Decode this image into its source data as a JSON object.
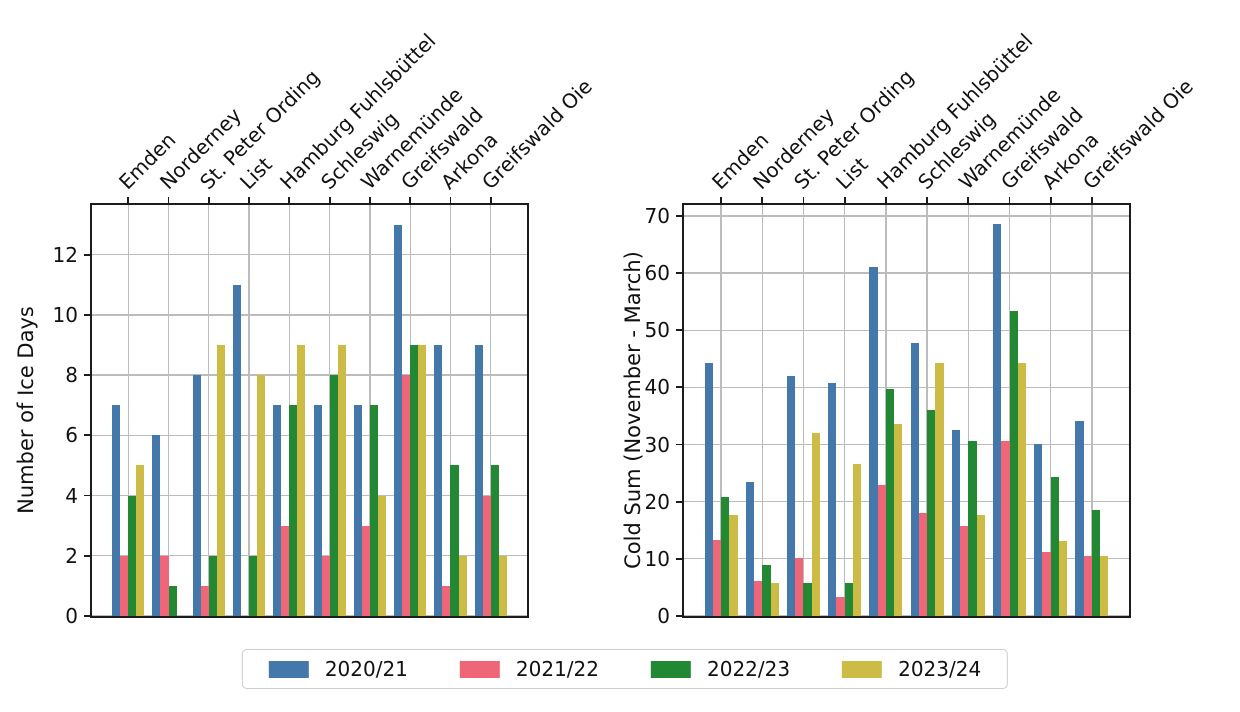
{
  "figure": {
    "background": "#ffffff"
  },
  "palette": {
    "season_2020_21": "#4477AA",
    "season_2021_22": "#EE6677",
    "season_2022_23": "#228833",
    "season_2023_24": "#CCBB44"
  },
  "axis_color": "#1c1c1c",
  "grid_color": "#bcbcbc",
  "legend": {
    "items": [
      {
        "label": "2020/21",
        "color": "#4477AA"
      },
      {
        "label": "2021/22",
        "color": "#EE6677"
      },
      {
        "label": "2022/23",
        "color": "#228833"
      },
      {
        "label": "2023/24",
        "color": "#CCBB44"
      }
    ]
  },
  "chart_data": [
    {
      "type": "bar",
      "title": "",
      "xlabel": "",
      "ylabel": "Number of Ice Days",
      "grid": true,
      "legend_position": "bottom-center-outside",
      "categories": [
        "Emden",
        "Norderney",
        "St. Peter Ording",
        "List",
        "Hamburg Fuhlsbüttel",
        "Schleswig",
        "Warnemünde",
        "Greifswald",
        "Arkona",
        "Greifswald Oie"
      ],
      "series": [
        {
          "name": "2020/21",
          "color": "#4477AA",
          "values": [
            7,
            6,
            8,
            11,
            7,
            7,
            7,
            13,
            9,
            9
          ]
        },
        {
          "name": "2021/22",
          "color": "#EE6677",
          "values": [
            2,
            2,
            1,
            0,
            3,
            2,
            3,
            8,
            1,
            4
          ]
        },
        {
          "name": "2022/23",
          "color": "#228833",
          "values": [
            4,
            1,
            2,
            2,
            7,
            8,
            7,
            9,
            5,
            5
          ]
        },
        {
          "name": "2023/24",
          "color": "#CCBB44",
          "values": [
            5,
            0,
            9,
            8,
            9,
            9,
            4,
            9,
            2,
            2
          ]
        }
      ],
      "yticks": [
        0,
        2,
        4,
        6,
        8,
        10,
        12
      ],
      "ylim": [
        0,
        13.65
      ]
    },
    {
      "type": "bar",
      "title": "",
      "xlabel": "",
      "ylabel": "Cold Sum (November - March)",
      "grid": true,
      "legend_position": "bottom-center-outside",
      "categories": [
        "Emden",
        "Norderney",
        "St. Peter Ording",
        "List",
        "Hamburg Fuhlsbüttel",
        "Schleswig",
        "Warnemünde",
        "Greifswald",
        "Arkona",
        "Greifswald Oie"
      ],
      "series": [
        {
          "name": "2020/21",
          "color": "#4477AA",
          "values": [
            44.2,
            23.4,
            41.9,
            40.7,
            61.0,
            47.7,
            32.6,
            68.5,
            30.1,
            34.2
          ]
        },
        {
          "name": "2021/22",
          "color": "#EE6677",
          "values": [
            13.3,
            6.1,
            10.2,
            3.4,
            22.9,
            18.0,
            15.8,
            30.7,
            11.2,
            10.5
          ]
        },
        {
          "name": "2022/23",
          "color": "#228833",
          "values": [
            20.8,
            8.9,
            5.7,
            5.7,
            39.7,
            36.0,
            30.7,
            53.4,
            24.4,
            18.6
          ]
        },
        {
          "name": "2023/24",
          "color": "#CCBB44",
          "values": [
            17.7,
            5.8,
            32.1,
            26.6,
            33.6,
            44.3,
            17.6,
            44.3,
            13.1,
            10.5
          ]
        }
      ],
      "yticks": [
        0,
        10,
        20,
        30,
        40,
        50,
        60,
        70
      ],
      "ylim": [
        0,
        71.9
      ]
    }
  ]
}
